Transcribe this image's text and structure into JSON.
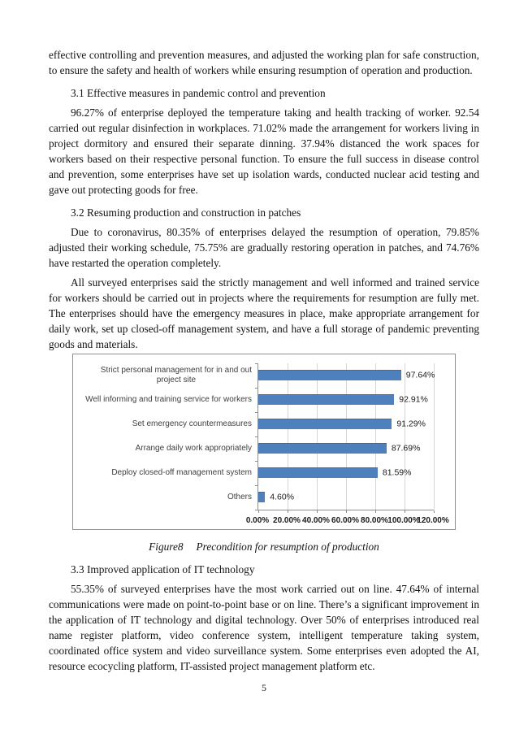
{
  "paragraphs": {
    "p0": "effective controlling and prevention measures, and adjusted the working plan for safe construction, to ensure the safety and health of workers while ensuring resumption of operation and production.",
    "p1": "96.27% of enterprise deployed the temperature taking and health tracking of worker. 92.54 carried out regular disinfection in workplaces. 71.02% made the arrangement for workers living in project dormitory and ensured their separate dinning. 37.94% distanced the work spaces for workers based on their respective personal function. To ensure the full success in disease control and prevention, some enterprises have set up isolation wards, conducted nuclear acid testing and gave out protecting goods for free.",
    "p2": "Due to coronavirus, 80.35% of enterprises delayed the resumption of operation, 79.85% adjusted their working schedule, 75.75% are gradually restoring operation in patches, and 74.76% have restarted the operation completely.",
    "p3": "All surveyed enterprises said the strictly management and well informed and trained service for workers should be carried out in projects where the requirements for resumption are fully met. The enterprises should have the emergency measures in place, make appropriate arrangement for daily work, set up closed-off management system, and have a full storage of pandemic preventing goods and materials.",
    "p4": "55.35% of surveyed enterprises have the most work carried out on line. 47.64% of internal communications were made on point-to-point base or on line. There’s a significant improvement in the application of IT technology and digital technology. Over 50% of enterprises introduced real name register platform, video conference system, intelligent temperature taking system, coordinated office system and video surveillance system. Some enterprises even adopted the AI, resource ecocycling platform, IT-assisted project management platform etc."
  },
  "headings": {
    "s31": "3.1 Effective measures in pandemic control and prevention",
    "s32": "3.2 Resuming production and construction in patches",
    "s33": "3.3 Improved application of IT technology"
  },
  "figure": {
    "label": "Figure8",
    "caption": "Precondition for resumption of production"
  },
  "page": {
    "number": "5"
  },
  "chart_data": {
    "type": "bar",
    "orientation": "horizontal",
    "title": "",
    "xlabel": "",
    "ylabel": "",
    "xlim": [
      0,
      120
    ],
    "grid": true,
    "legend": false,
    "categories": [
      "Strict personal management for in and out\nproject site",
      "Well informing and training service for workers",
      "Set emergency countermeasures",
      "Arrange daily work appropriately",
      "Deploy closed-off management system",
      "Others"
    ],
    "values": [
      97.64,
      92.91,
      91.29,
      87.69,
      81.59,
      4.6
    ],
    "value_labels": [
      "97.64%",
      "92.91%",
      "91.29%",
      "87.69%",
      "81.59%",
      "4.60%"
    ],
    "x_ticks": [
      "0.00%",
      "20.00%",
      "40.00%",
      "60.00%",
      "80.00%",
      "100.00%",
      "120.00%"
    ],
    "bar_color": "#4d80bc",
    "gridline_color": "#d6d6d6",
    "axis_color": "#8f8f8f",
    "label_color": "#404040"
  }
}
